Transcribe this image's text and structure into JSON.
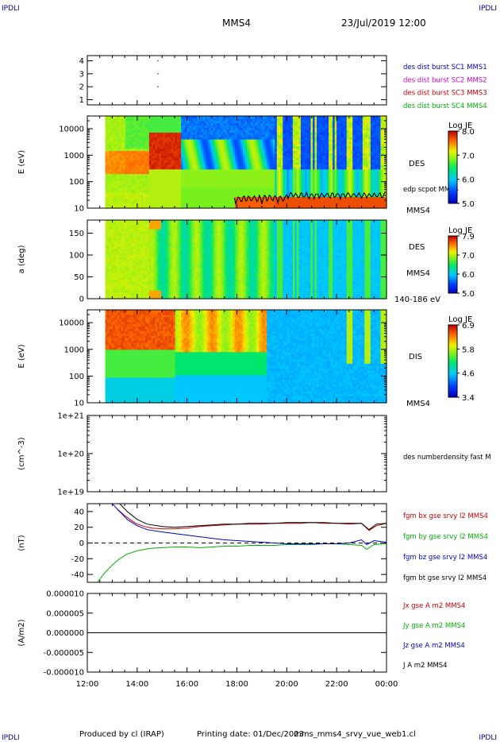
{
  "header": {
    "corner_tl": "IPDLI",
    "corner_tr": "IPDLI",
    "corner_bl": "IPDLI",
    "corner_br": "IPDLI",
    "title": "MMS4",
    "datetime": "23/Jul/2019 12:00"
  },
  "footer": {
    "produced_by": "Produced by cl (IRAP)",
    "printing_date": "Printing date: 01/Dec/2023",
    "file": "mms_mms4_srvy_vue_web1.cl"
  },
  "x_axis": {
    "ticks": [
      "12:00",
      "14:00",
      "16:00",
      "18:00",
      "20:00",
      "22:00",
      "00:00"
    ],
    "range_hours": [
      12,
      24
    ]
  },
  "chart_data": [
    {
      "type": "scatter",
      "panel": "burst-availability",
      "yticks": [
        "1",
        "2",
        "3",
        "4"
      ],
      "ylim": [
        0.6,
        4.4
      ],
      "series": [
        {
          "name": "des dist burst SC1 MMS1",
          "color": "#0000cd",
          "x": [],
          "y": []
        },
        {
          "name": "des dist burst SC2 MMS2",
          "color": "#cc00cc",
          "x": [],
          "y": []
        },
        {
          "name": "des dist burst SC3 MMS3",
          "color": "#cc0000",
          "x": [
            14.83,
            14.83,
            14.83
          ],
          "y": [
            4,
            3,
            2
          ]
        },
        {
          "name": "des dist burst SC4 MMS4",
          "color": "#00b000",
          "x": [],
          "y": []
        }
      ]
    },
    {
      "type": "heatmap",
      "panel": "des-energy",
      "ylabel": "E (eV)",
      "yticks": [
        "10",
        "100",
        "1000",
        "10000"
      ],
      "ylog": true,
      "ylim": [
        10,
        30000
      ],
      "right_labels": [
        "DES",
        "edp scpot MMS4",
        "MMS4"
      ],
      "colorbar": {
        "title": "Log JE",
        "ticks": [
          "8.0",
          "7.0",
          "6.0",
          "5.0"
        ],
        "range": [
          5.0,
          8.2
        ]
      },
      "spacecraft_potential_start_hours": 17.9
    },
    {
      "type": "heatmap",
      "panel": "des-pitch-angle",
      "ylabel": "a (deg)",
      "yticks": [
        "0",
        "50",
        "100",
        "150"
      ],
      "ylim": [
        0,
        180
      ],
      "right_labels": [
        "DES",
        "MMS4",
        "140-186 eV"
      ],
      "colorbar": {
        "title": "Log JE",
        "ticks": [
          "7.9",
          "7.0",
          "6.0",
          "5.0"
        ],
        "range": [
          5.0,
          7.95
        ]
      }
    },
    {
      "type": "heatmap",
      "panel": "dis-energy",
      "ylabel": "E (eV)",
      "yticks": [
        "10",
        "100",
        "1000",
        "10000"
      ],
      "ylog": true,
      "ylim": [
        10,
        30000
      ],
      "right_labels": [
        "DIS",
        "MMS4"
      ],
      "colorbar": {
        "title": "Log JE",
        "ticks": [
          "6.9",
          "5.8",
          "4.6",
          "3.4"
        ],
        "range": [
          3.4,
          7.0
        ]
      }
    },
    {
      "type": "line",
      "panel": "density",
      "ylabel": "(cm^-3)",
      "yticks": [
        "1e+19",
        "1e+20",
        "1e+21"
      ],
      "ylog": true,
      "ylim": [
        1e+19,
        1e+21
      ],
      "series": [
        {
          "name": "des numberdensity fast M",
          "color": "#000000",
          "x": [],
          "y": []
        }
      ]
    },
    {
      "type": "line",
      "panel": "magnetic-field",
      "ylabel": "(nT)",
      "yticks": [
        "-40",
        "-20",
        "0",
        "20",
        "40"
      ],
      "ylim": [
        -50,
        50
      ],
      "series": [
        {
          "name": "fgm bx gse srvy l2 MMS4",
          "color": "#cc0000",
          "x": [
            13.2,
            13.5,
            13.8,
            14.0,
            14.3,
            14.6,
            15.0,
            15.5,
            16.0,
            16.5,
            17.0,
            17.5,
            18.0,
            18.5,
            19.0,
            19.5,
            20.0,
            20.5,
            21.0,
            21.5,
            22.0,
            22.5,
            23.0,
            23.3,
            23.6,
            24.0
          ],
          "y": [
            43,
            35,
            28,
            24,
            21,
            19,
            18,
            18,
            19,
            21,
            22,
            23,
            24,
            24,
            24,
            25,
            25,
            25,
            26,
            25,
            25,
            24,
            25,
            16,
            22,
            25
          ]
        },
        {
          "name": "fgm by gse srvy l2 MMS4",
          "color": "#00b000",
          "x": [
            12.4,
            12.7,
            13.0,
            13.3,
            13.6,
            14.0,
            14.5,
            15.0,
            15.5,
            16.0,
            16.5,
            17.0,
            17.5,
            18.0,
            18.5,
            19.0,
            19.5,
            20.0,
            20.5,
            21.0,
            21.5,
            22.0,
            22.5,
            23.0,
            23.2,
            23.5,
            24.0
          ],
          "y": [
            -50,
            -38,
            -28,
            -20,
            -14,
            -10,
            -7,
            -6,
            -5,
            -5,
            -6,
            -5,
            -4,
            -4,
            -3,
            -3,
            -3,
            -2,
            -2,
            -2,
            -1,
            -1,
            -2,
            -3,
            -8,
            -2,
            -1
          ]
        },
        {
          "name": "fgm bz gse srvy l2 MMS4",
          "color": "#0000cd",
          "x": [
            13.0,
            13.3,
            13.6,
            14.0,
            14.4,
            15.0,
            15.5,
            16.0,
            16.5,
            17.0,
            17.5,
            18.0,
            18.5,
            19.0,
            19.5,
            20.0,
            20.5,
            21.0,
            21.5,
            22.0,
            22.5,
            23.0,
            23.2,
            23.5,
            24.0
          ],
          "y": [
            50,
            40,
            30,
            22,
            17,
            14,
            12,
            10,
            8,
            6,
            4,
            3,
            2,
            1,
            0,
            -1,
            -1,
            -1,
            -1,
            -1,
            0,
            4,
            -2,
            3,
            1
          ]
        },
        {
          "name": "fgm bt gse srvy l2 MMS4",
          "color": "#000000",
          "x": [
            13.3,
            13.6,
            14.0,
            14.4,
            15.0,
            15.5,
            16.0,
            16.5,
            17.0,
            17.5,
            18.0,
            18.5,
            19.0,
            19.5,
            20.0,
            20.5,
            21.0,
            21.5,
            22.0,
            22.5,
            23.0,
            23.3,
            23.6,
            24.0
          ],
          "y": [
            50,
            40,
            30,
            24,
            21,
            20,
            21,
            22,
            23,
            24,
            24,
            25,
            25,
            25,
            26,
            26,
            26,
            26,
            25,
            25,
            25,
            17,
            24,
            25
          ]
        }
      ]
    },
    {
      "type": "line",
      "panel": "current-density",
      "ylabel": "(A/m2)",
      "yticks": [
        "-0.000010",
        "-0.000005",
        "0.000000",
        "0.000005",
        "0.000010"
      ],
      "ylim": [
        -1e-05,
        1e-05
      ],
      "series": [
        {
          "name": "Jx gse A m2 MMS4",
          "color": "#cc0000",
          "x": [
            12,
            24
          ],
          "y": [
            0,
            0
          ]
        },
        {
          "name": "Jy gse A m2 MMS4",
          "color": "#00b000",
          "x": [
            12,
            24
          ],
          "y": [
            0,
            0
          ]
        },
        {
          "name": "Jz gse A m2 MMS4",
          "color": "#0000cd",
          "x": [
            12,
            24
          ],
          "y": [
            0,
            0
          ]
        },
        {
          "name": "J A m2 MMS4",
          "color": "#000000",
          "x": [
            12,
            24
          ],
          "y": [
            0,
            0
          ]
        }
      ]
    }
  ]
}
